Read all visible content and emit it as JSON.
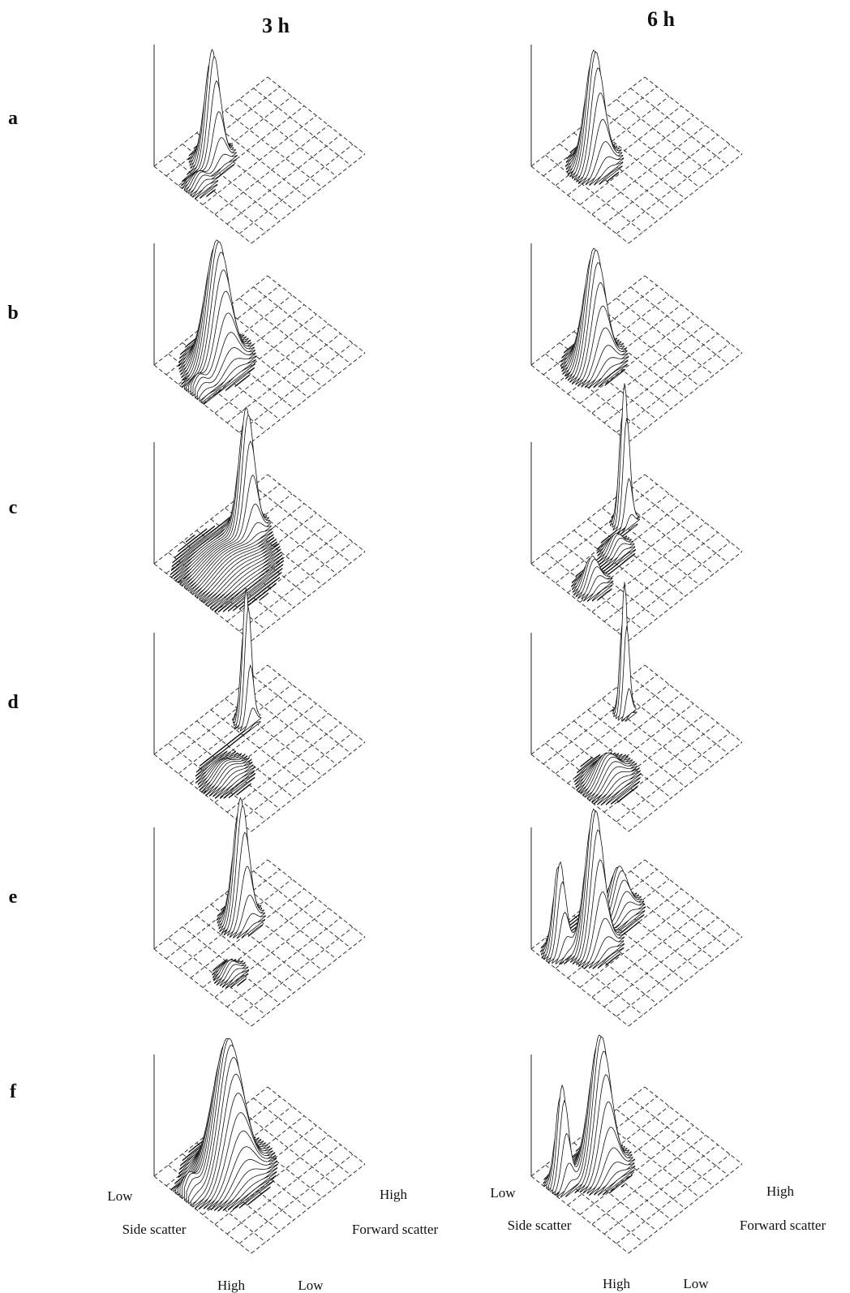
{
  "columns": [
    "3 h",
    "6 h"
  ],
  "rows": [
    "a",
    "b",
    "c",
    "d",
    "e",
    "f"
  ],
  "axis_labels": [
    {
      "side_low": "Low",
      "side_title": "Side scatter",
      "side_high": "High",
      "forward_high": "High",
      "forward_title": "Forward scatter",
      "forward_low": "Low"
    },
    {
      "side_low": "Low",
      "side_title": "Side scatter",
      "side_high": "High",
      "forward_high": "High",
      "forward_title": "Forward scatter",
      "forward_low": "Low"
    }
  ]
}
